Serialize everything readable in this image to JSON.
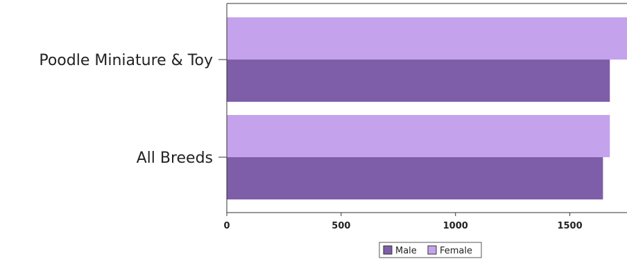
{
  "chart_data": {
    "type": "bar",
    "orientation": "horizontal",
    "categories": [
      "Poodle Miniature & Toy",
      "All Breeds"
    ],
    "series": [
      {
        "name": "Female",
        "values": [
          1760,
          1675
        ],
        "color": "#c4a3ec"
      },
      {
        "name": "Male",
        "values": [
          1675,
          1645
        ],
        "color": "#7e5ea8"
      }
    ],
    "xlim": [
      0,
      1750
    ],
    "xticks": [
      0,
      500,
      1000,
      1500
    ],
    "xtick_labels": [
      "0",
      "500",
      "1000",
      "1500"
    ],
    "grid": false,
    "legend": {
      "placement": "bottom-center",
      "entries": [
        "Male",
        "Female"
      ]
    }
  }
}
